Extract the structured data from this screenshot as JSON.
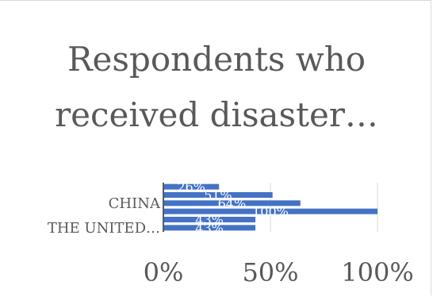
{
  "chart_data": {
    "type": "bar",
    "orientation": "horizontal",
    "title_lines": [
      "Respondents who",
      "received disaster…"
    ],
    "categories": [
      "",
      "",
      "CHINA",
      "",
      "",
      "THE UNITED…"
    ],
    "values": [
      26,
      51,
      64,
      100,
      43,
      43
    ],
    "data_labels": [
      "26%",
      "51%",
      "64%",
      "100%",
      "43%",
      "43%"
    ],
    "x_ticks": [
      "0%",
      "50%",
      "100%"
    ],
    "xlim": [
      0,
      100
    ],
    "grid": true,
    "bar_color": "#4472c4"
  }
}
